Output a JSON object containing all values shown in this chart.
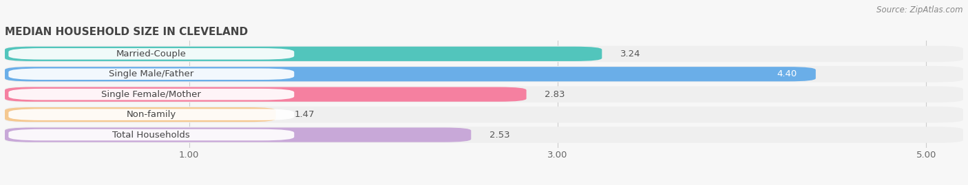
{
  "title": "MEDIAN HOUSEHOLD SIZE IN CLEVELAND",
  "source": "Source: ZipAtlas.com",
  "categories": [
    "Married-Couple",
    "Single Male/Father",
    "Single Female/Mother",
    "Non-family",
    "Total Households"
  ],
  "values": [
    3.24,
    4.4,
    2.83,
    1.47,
    2.53
  ],
  "bar_colors": [
    "#52c5bc",
    "#6aaee8",
    "#f580a0",
    "#f5c890",
    "#c8a8d8"
  ],
  "row_bg_color": "#efefef",
  "label_box_color": "#ffffff",
  "xlim_start": 0.0,
  "xlim_end": 5.2,
  "xticks": [
    1.0,
    3.0,
    5.0
  ],
  "bar_height": 0.72,
  "fig_bg_color": "#f7f7f7",
  "title_fontsize": 11,
  "label_fontsize": 9.5,
  "value_fontsize": 9.5,
  "source_fontsize": 8.5
}
